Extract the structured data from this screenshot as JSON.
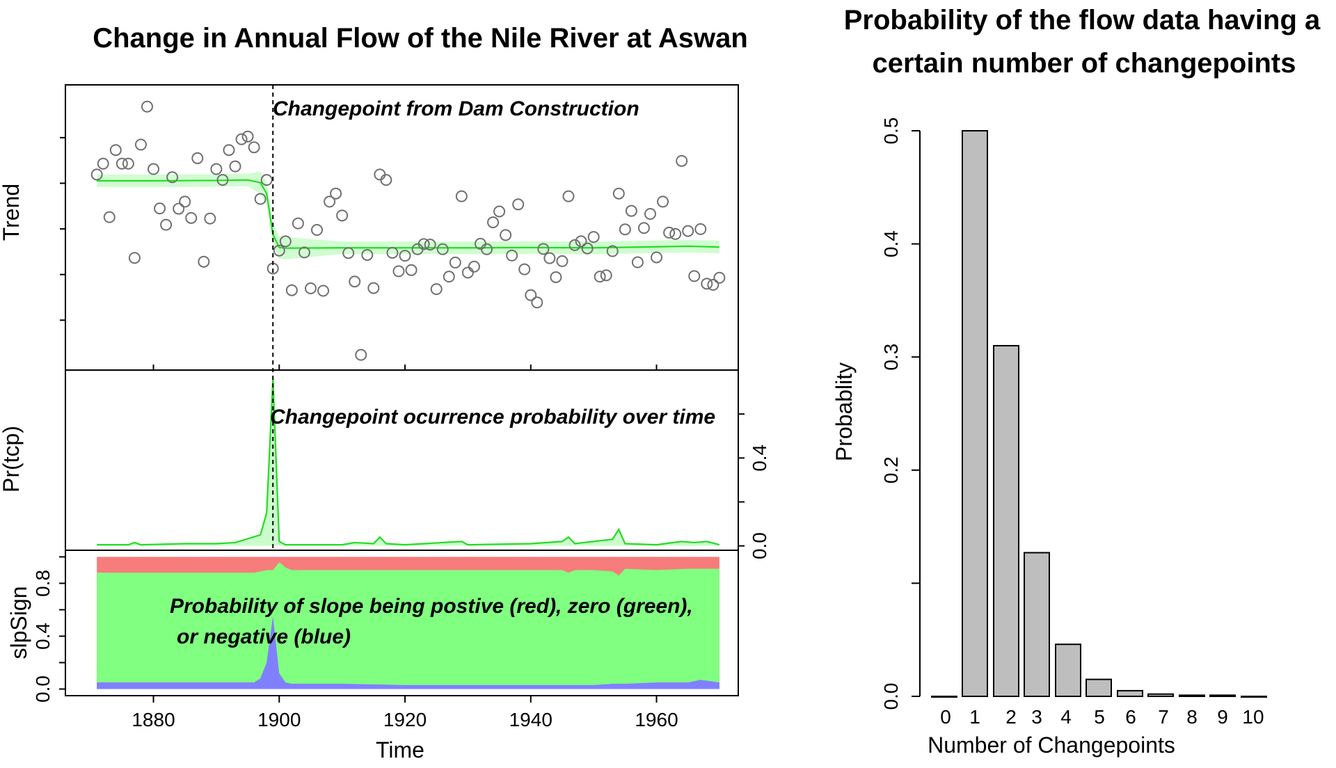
{
  "chart_data": [
    {
      "type": "scatter",
      "title": "Change in Annual Flow of the Nile River at Aswan",
      "xlabel": "Time",
      "xlim": [
        1866,
        1973
      ],
      "x_ticks": [
        "1880",
        "1900",
        "1920",
        "1940",
        "1960"
      ],
      "panels": [
        {
          "name": "Trend",
          "ylabel": "Trend",
          "type": "scatter+line",
          "ylim": [
            400,
            1450
          ],
          "annotations": [
            "Changepoint from Dam Construction"
          ],
          "changepoint_year": 1899,
          "observed": {
            "x": [
              1871,
              1872,
              1873,
              1874,
              1875,
              1876,
              1877,
              1878,
              1879,
              1880,
              1881,
              1882,
              1883,
              1884,
              1885,
              1886,
              1887,
              1888,
              1889,
              1890,
              1891,
              1892,
              1893,
              1894,
              1895,
              1896,
              1897,
              1898,
              1899,
              1900,
              1901,
              1902,
              1903,
              1904,
              1905,
              1906,
              1907,
              1908,
              1909,
              1910,
              1911,
              1912,
              1913,
              1914,
              1915,
              1916,
              1917,
              1918,
              1919,
              1920,
              1921,
              1922,
              1923,
              1924,
              1925,
              1926,
              1927,
              1928,
              1929,
              1930,
              1931,
              1932,
              1933,
              1934,
              1935,
              1936,
              1937,
              1938,
              1939,
              1940,
              1941,
              1942,
              1943,
              1944,
              1945,
              1946,
              1947,
              1948,
              1949,
              1950,
              1951,
              1952,
              1953,
              1954,
              1955,
              1956,
              1957,
              1958,
              1959,
              1960,
              1961,
              1962,
              1963,
              1964,
              1965,
              1966,
              1967,
              1968,
              1969,
              1970
            ],
            "y": [
              1120,
              1160,
              963,
              1210,
              1160,
              1160,
              813,
              1230,
              1370,
              1140,
              995,
              935,
              1110,
              994,
              1020,
              960,
              1180,
              799,
              958,
              1140,
              1100,
              1210,
              1150,
              1250,
              1260,
              1220,
              1030,
              1100,
              774,
              840,
              874,
              694,
              940,
              833,
              701,
              916,
              692,
              1020,
              1050,
              969,
              831,
              726,
              456,
              824,
              702,
              1120,
              1100,
              832,
              764,
              821,
              768,
              845,
              864,
              862,
              698,
              845,
              744,
              796,
              1040,
              759,
              781,
              865,
              845,
              944,
              984,
              897,
              822,
              1010,
              771,
              676,
              649,
              846,
              812,
              742,
              801,
              1040,
              860,
              874,
              848,
              890,
              744,
              749,
              838,
              1050,
              918,
              986,
              797,
              923,
              975,
              815,
              1020,
              906,
              901,
              1170,
              912,
              746,
              919,
              718,
              714,
              740
            ]
          },
          "fitted": {
            "x": [
              1871,
              1880,
              1890,
              1895,
              1897,
              1898,
              1899,
              1900,
              1901,
              1910,
              1920,
              1930,
              1940,
              1950,
              1955,
              1960,
              1965,
              1970
            ],
            "y": [
              1097,
              1097,
              1098,
              1100,
              1090,
              1050,
              900,
              851,
              849,
              850,
              850,
              850,
              851,
              850,
              852,
              854,
              856,
              853
            ]
          }
        },
        {
          "name": "Pr(tcp)",
          "ylabel": "Pr(tcp)",
          "type": "area",
          "ylim": [
            -0.02,
            0.8
          ],
          "y_ticks": [
            "0.0",
            "0.4"
          ],
          "annotations": [
            "Changepoint ocurrence probability over time"
          ],
          "x": [
            1871,
            1876,
            1877,
            1878,
            1885,
            1890,
            1893,
            1897,
            1898,
            1899,
            1900,
            1901,
            1910,
            1912,
            1915,
            1916,
            1917,
            1920,
            1929,
            1930,
            1940,
            1945,
            1946,
            1947,
            1953,
            1954,
            1955,
            1960,
            1964,
            1966,
            1968,
            1970
          ],
          "y": [
            0.005,
            0.005,
            0.015,
            0.005,
            0.01,
            0.01,
            0.015,
            0.05,
            0.15,
            0.76,
            0.02,
            0.005,
            0.005,
            0.015,
            0.01,
            0.04,
            0.01,
            0.005,
            0.02,
            0.005,
            0.01,
            0.02,
            0.04,
            0.01,
            0.03,
            0.075,
            0.01,
            0.005,
            0.02,
            0.015,
            0.02,
            0.005
          ]
        },
        {
          "name": "slpSign",
          "ylabel": "slpSign",
          "type": "area",
          "ylim": [
            -0.05,
            1.05
          ],
          "y_ticks": [
            "0.0",
            "0.4",
            "0.8"
          ],
          "annotations": [
            "Probability of slope being postive (red), zero (green),",
            "or negative (blue)"
          ],
          "colors": {
            "positive": "#f77c7c",
            "zero": "#80ff80",
            "negative": "#8080ff"
          },
          "x": [
            1871,
            1880,
            1890,
            1896,
            1897,
            1898,
            1899,
            1900,
            1901,
            1902,
            1910,
            1920,
            1930,
            1940,
            1945,
            1946,
            1947,
            1950,
            1953,
            1954,
            1955,
            1960,
            1965,
            1967,
            1970
          ],
          "negative": [
            0.05,
            0.05,
            0.05,
            0.05,
            0.08,
            0.2,
            0.55,
            0.12,
            0.05,
            0.04,
            0.04,
            0.03,
            0.03,
            0.03,
            0.03,
            0.03,
            0.03,
            0.03,
            0.04,
            0.04,
            0.04,
            0.05,
            0.05,
            0.07,
            0.05
          ],
          "zero_upper": [
            0.88,
            0.88,
            0.88,
            0.88,
            0.89,
            0.9,
            0.9,
            0.96,
            0.92,
            0.9,
            0.9,
            0.9,
            0.9,
            0.9,
            0.9,
            0.88,
            0.9,
            0.9,
            0.89,
            0.86,
            0.91,
            0.9,
            0.91,
            0.91,
            0.91
          ]
        }
      ]
    },
    {
      "type": "bar",
      "title": "Probability of the flow data having a certain number of changepoints",
      "xlabel": "Number of Changepoints",
      "ylabel": "Probablity",
      "categories": [
        "0",
        "1",
        "2",
        "3",
        "4",
        "5",
        "6",
        "7",
        "8",
        "9",
        "10"
      ],
      "values": [
        0.0,
        0.5,
        0.31,
        0.127,
        0.046,
        0.015,
        0.005,
        0.002,
        0.001,
        0.001,
        0.0
      ],
      "ylim": [
        0,
        0.5
      ],
      "y_ticks": [
        "0.0",
        "0.2",
        "0.3",
        "0.4",
        "0.5"
      ],
      "bar_color": "#bebebe"
    }
  ],
  "ui": {
    "left_title": "Change in Annual Flow of the Nile River at Aswan",
    "right_title_line1": "Probability of the flow data having a",
    "right_title_line2": "certain number of changepoints",
    "ann_trend": "Changepoint from Dam Construction",
    "ann_tcp": "Changepoint ocurrence probability over time",
    "ann_slp_line1": "Probability of slope being postive (red), zero (green),",
    "ann_slp_line2": "or negative (blue)",
    "ylabel_trend": "Trend",
    "ylabel_tcp": "Pr(tcp)",
    "ylabel_slp": "slpSign",
    "xlabel_left": "Time",
    "ylabel_right": "Probablity",
    "xlabel_right": "Number of Changepoints"
  }
}
